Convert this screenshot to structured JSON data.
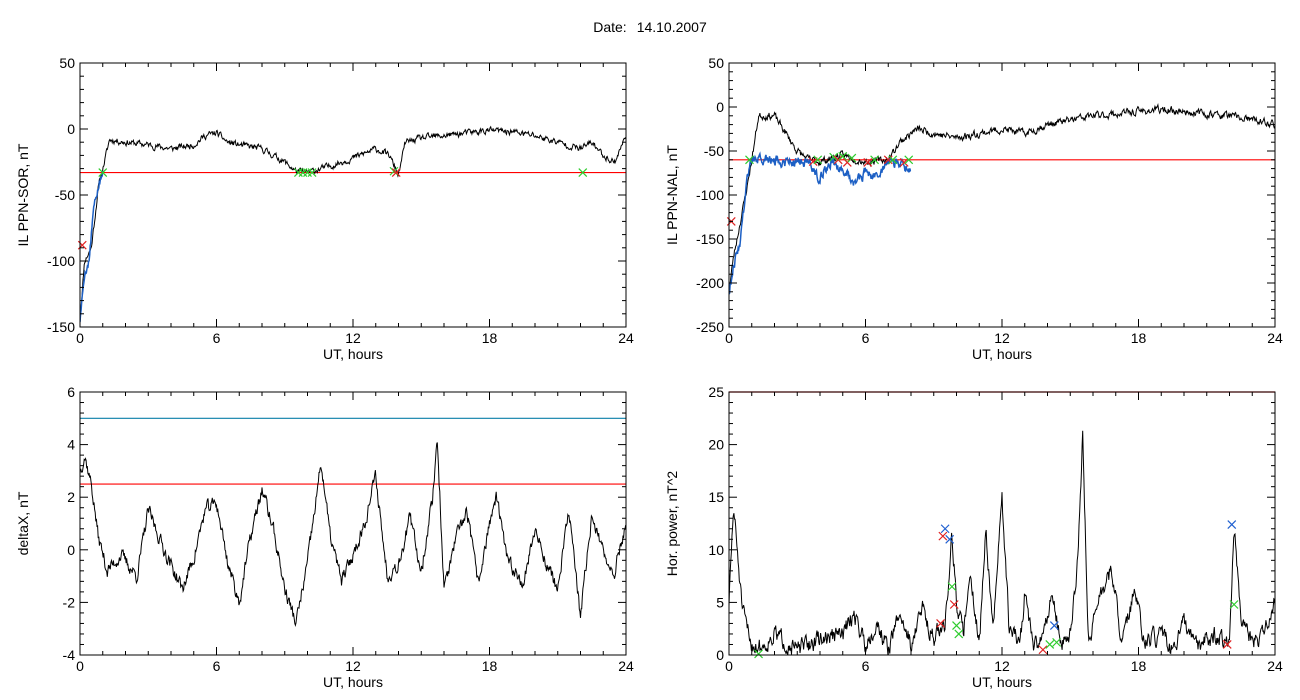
{
  "header": {
    "date_label": "Date:",
    "date_value": "14.10.2007"
  },
  "colors": {
    "trace": "#000000",
    "threshold_red": "#ff0000",
    "threshold_teal": "#0a7fa8",
    "highlight_blue": "#1c5fc4",
    "marker_red": "#e02020",
    "marker_green": "#2ecc2e",
    "marker_blue": "#2060d0"
  },
  "chart_data": [
    {
      "type": "line",
      "id": "sor",
      "ylabel": "IL PPN-SOR, nT",
      "xlabel": "UT, hours",
      "xlim": [
        0,
        24
      ],
      "ylim": [
        -150,
        50
      ],
      "xticks": [
        0,
        6,
        12,
        18,
        24
      ],
      "yticks": [
        -150,
        -100,
        -50,
        0,
        50
      ],
      "grid": false,
      "threshold": [
        {
          "value": -33,
          "color": "#ff0000"
        }
      ],
      "series": [
        {
          "color": "#000000",
          "noise": 2.0,
          "seed": 11,
          "x": [
            0,
            0.2,
            0.5,
            0.8,
            1.0,
            1.3,
            2,
            3,
            4,
            5,
            5.5,
            6,
            6.5,
            7,
            8,
            9,
            9.5,
            10,
            11,
            12,
            13,
            13.6,
            14,
            14.3,
            15,
            16,
            17,
            18,
            19,
            20,
            21,
            22,
            22.5,
            23,
            23.5,
            24
          ],
          "y": [
            -145,
            -100,
            -90,
            -45,
            -30,
            -8,
            -10,
            -12,
            -15,
            -12,
            -5,
            -3,
            -10,
            -12,
            -15,
            -25,
            -32,
            -33,
            -28,
            -22,
            -15,
            -20,
            -35,
            -10,
            -7,
            -5,
            -3,
            -1,
            -2,
            -5,
            -10,
            -15,
            -10,
            -20,
            -25,
            -5
          ]
        },
        {
          "color": "#1c5fc4",
          "noise": 2.5,
          "seed": 5,
          "x": [
            0,
            0.2,
            0.4,
            0.6,
            0.8,
            1.0
          ],
          "y": [
            -145,
            -110,
            -100,
            -60,
            -45,
            -33
          ]
        }
      ],
      "markers": [
        {
          "x": 1.0,
          "y": -33,
          "color": "#2ecc2e"
        },
        {
          "x": 0.1,
          "y": -88,
          "color": "#e02020"
        },
        {
          "x": 9.6,
          "y": -33,
          "color": "#2ecc2e"
        },
        {
          "x": 9.8,
          "y": -33,
          "color": "#2ecc2e"
        },
        {
          "x": 10.0,
          "y": -33,
          "color": "#2ecc2e"
        },
        {
          "x": 10.2,
          "y": -33,
          "color": "#2ecc2e"
        },
        {
          "x": 13.8,
          "y": -32,
          "color": "#2ecc2e"
        },
        {
          "x": 13.9,
          "y": -33,
          "color": "#e02020"
        },
        {
          "x": 22.1,
          "y": -33,
          "color": "#2ecc2e"
        }
      ]
    },
    {
      "type": "line",
      "id": "nal",
      "ylabel": "IL PPN-NAL, nT",
      "xlabel": "UT, hours",
      "xlim": [
        0,
        24
      ],
      "ylim": [
        -250,
        50
      ],
      "xticks": [
        0,
        6,
        12,
        18,
        24
      ],
      "yticks": [
        -250,
        -200,
        -150,
        -100,
        -50,
        0,
        50
      ],
      "grid": false,
      "threshold": [
        {
          "value": -60,
          "color": "#ff0000"
        }
      ],
      "series": [
        {
          "color": "#000000",
          "noise": 3.5,
          "seed": 23,
          "x": [
            0,
            0.2,
            0.5,
            0.8,
            1.0,
            1.3,
            2,
            2.5,
            3,
            3.5,
            4,
            5,
            6,
            7,
            7.5,
            8,
            8.3,
            9,
            10,
            11,
            12,
            13,
            14,
            15,
            16,
            17,
            18,
            19,
            20,
            21,
            22,
            23,
            24
          ],
          "y": [
            -210,
            -170,
            -130,
            -90,
            -60,
            -10,
            -10,
            -30,
            -50,
            -60,
            -62,
            -55,
            -62,
            -60,
            -40,
            -30,
            -25,
            -30,
            -35,
            -30,
            -25,
            -30,
            -20,
            -15,
            -10,
            -8,
            -5,
            -3,
            -5,
            -8,
            -10,
            -15,
            -20
          ]
        },
        {
          "color": "#1c5fc4",
          "noise": 5,
          "seed": 9,
          "x": [
            0,
            0.2,
            0.5,
            0.8,
            1.0,
            3.5,
            4,
            4.5,
            5,
            5.5,
            6,
            6.5,
            7,
            7.5,
            8
          ],
          "y": [
            -210,
            -180,
            -150,
            -80,
            -60,
            -62,
            -80,
            -62,
            -70,
            -85,
            -75,
            -80,
            -60,
            -65,
            -70
          ]
        }
      ],
      "markers": [
        {
          "x": 0.1,
          "y": -130,
          "color": "#e02020"
        },
        {
          "x": 0.9,
          "y": -60,
          "color": "#2ecc2e"
        },
        {
          "x": 3.7,
          "y": -62,
          "color": "#e02020"
        },
        {
          "x": 3.9,
          "y": -60,
          "color": "#2ecc2e"
        },
        {
          "x": 4.6,
          "y": -57,
          "color": "#2ecc2e"
        },
        {
          "x": 4.8,
          "y": -60,
          "color": "#e02020"
        },
        {
          "x": 5.0,
          "y": -56,
          "color": "#2ecc2e"
        },
        {
          "x": 5.2,
          "y": -63,
          "color": "#e02020"
        },
        {
          "x": 5.4,
          "y": -58,
          "color": "#2ecc2e"
        },
        {
          "x": 6.1,
          "y": -63,
          "color": "#e02020"
        },
        {
          "x": 6.4,
          "y": -60,
          "color": "#2ecc2e"
        },
        {
          "x": 7.0,
          "y": -60,
          "color": "#e02020"
        },
        {
          "x": 7.2,
          "y": -60,
          "color": "#2ecc2e"
        },
        {
          "x": 7.7,
          "y": -63,
          "color": "#e02020"
        },
        {
          "x": 7.9,
          "y": -60,
          "color": "#2ecc2e"
        }
      ]
    },
    {
      "type": "line",
      "id": "deltax",
      "ylabel": "deltaX, nT",
      "xlabel": "UT, hours",
      "xlim": [
        0,
        24
      ],
      "ylim": [
        -4,
        6
      ],
      "xticks": [
        0,
        6,
        12,
        18,
        24
      ],
      "yticks": [
        -4,
        -2,
        0,
        2,
        4,
        6
      ],
      "grid": false,
      "threshold": [
        {
          "value": 5,
          "color": "#0a7fa8"
        },
        {
          "value": 2.5,
          "color": "#ff0000"
        }
      ],
      "series": [
        {
          "color": "#000000",
          "noise": 0.22,
          "seed": 37,
          "x": [
            0,
            0.2,
            0.5,
            0.8,
            1.2,
            1.8,
            2.5,
            3,
            3.8,
            4.5,
            5,
            5.5,
            6,
            6.5,
            7,
            7.5,
            8,
            8.5,
            9,
            9.5,
            10,
            10.6,
            11,
            11.5,
            12,
            12.5,
            13,
            13.5,
            14,
            14.5,
            15,
            15.5,
            15.7,
            16,
            16.5,
            17,
            17.5,
            18,
            18.3,
            18.8,
            19.5,
            20,
            20.5,
            21,
            21.5,
            22,
            22.5,
            23,
            23.5,
            24
          ],
          "y": [
            3.0,
            3.6,
            2.5,
            0.5,
            -0.8,
            -0.2,
            -1.0,
            1.5,
            -0.2,
            -1.5,
            -0.3,
            1.5,
            1.8,
            -0.5,
            -2.0,
            0.5,
            2.3,
            0.8,
            -1.5,
            -2.8,
            -0.5,
            3.3,
            0.5,
            -1.2,
            -0.2,
            1.0,
            2.8,
            -1.0,
            -0.5,
            1.2,
            -0.8,
            2.0,
            4.3,
            -1.5,
            0.3,
            1.5,
            -1.3,
            1.0,
            2.0,
            -0.5,
            -1.2,
            0.8,
            -0.5,
            -1.5,
            1.5,
            -2.6,
            1.4,
            -0.2,
            -0.8,
            1.0
          ]
        }
      ],
      "markers": []
    },
    {
      "type": "line",
      "id": "power",
      "ylabel": "Hor. power, nT^2",
      "xlabel": "UT, hours",
      "xlim": [
        0,
        24
      ],
      "ylim": [
        0,
        25
      ],
      "xticks": [
        0,
        6,
        12,
        18,
        24
      ],
      "yticks": [
        0,
        5,
        10,
        15,
        20,
        25
      ],
      "grid": false,
      "threshold": [
        {
          "value": 25,
          "color": "#ff0000"
        }
      ],
      "series": [
        {
          "color": "#000000",
          "noise": 0.7,
          "seed": 51,
          "clip_min": 0,
          "x": [
            0,
            0.2,
            0.4,
            0.6,
            1.0,
            1.5,
            2,
            3,
            4,
            5,
            5.5,
            6,
            6.5,
            7,
            7.5,
            8,
            8.5,
            9,
            9.5,
            9.8,
            10,
            10.3,
            10.6,
            11,
            11.3,
            11.6,
            12,
            12.3,
            12.8,
            13,
            13.4,
            13.8,
            14.2,
            14.6,
            15,
            15.3,
            15.55,
            15.8,
            16.2,
            16.8,
            17.3,
            17.8,
            18.3,
            19,
            19.5,
            20,
            20.5,
            21,
            21.5,
            22,
            22.2,
            22.5,
            23,
            23.5,
            24
          ],
          "y": [
            5,
            14,
            9,
            4,
            1,
            0.8,
            2,
            0.5,
            1.5,
            2,
            4,
            1,
            3,
            0.5,
            4,
            1,
            4.5,
            1.5,
            3,
            11.5,
            5,
            2,
            8,
            1,
            12,
            2,
            15,
            3,
            1,
            6,
            0.5,
            2,
            6,
            1,
            2,
            8,
            21,
            1,
            5,
            8,
            1,
            6,
            1,
            2,
            0.3,
            3,
            0.8,
            1.5,
            2,
            0.8,
            12.5,
            3,
            1,
            2,
            5
          ]
        }
      ],
      "markers": [
        {
          "x": 9.5,
          "y": 12,
          "color": "#2060d0"
        },
        {
          "x": 9.7,
          "y": 11,
          "color": "#2060d0"
        },
        {
          "x": 9.4,
          "y": 11.3,
          "color": "#e02020"
        },
        {
          "x": 9.3,
          "y": 3.0,
          "color": "#e02020"
        },
        {
          "x": 9.8,
          "y": 6.5,
          "color": "#2ecc2e"
        },
        {
          "x": 10.0,
          "y": 2.8,
          "color": "#2ecc2e"
        },
        {
          "x": 10.1,
          "y": 2.0,
          "color": "#2ecc2e"
        },
        {
          "x": 9.9,
          "y": 4.8,
          "color": "#e02020"
        },
        {
          "x": 13.8,
          "y": 0.5,
          "color": "#e02020"
        },
        {
          "x": 14.1,
          "y": 1.0,
          "color": "#2ecc2e"
        },
        {
          "x": 14.3,
          "y": 2.8,
          "color": "#2060d0"
        },
        {
          "x": 14.4,
          "y": 1.2,
          "color": "#2ecc2e"
        },
        {
          "x": 22.1,
          "y": 12.4,
          "color": "#2060d0"
        },
        {
          "x": 22.2,
          "y": 4.8,
          "color": "#2ecc2e"
        },
        {
          "x": 21.9,
          "y": 1.0,
          "color": "#e02020"
        },
        {
          "x": 1.3,
          "y": 0.1,
          "color": "#2ecc2e"
        }
      ]
    }
  ]
}
